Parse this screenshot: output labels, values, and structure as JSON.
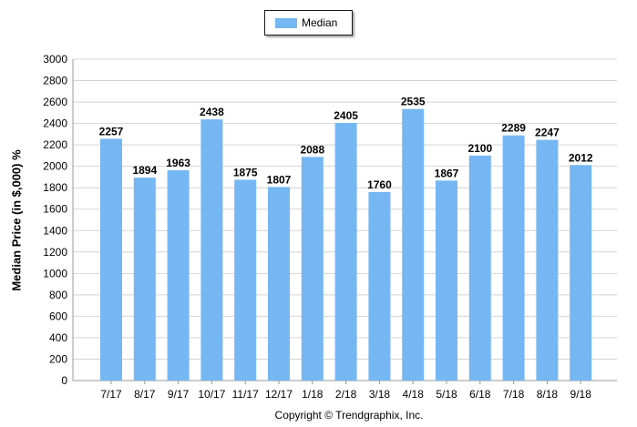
{
  "legend": {
    "label": "Median"
  },
  "footer": {
    "copyright": "Copyright © Trendgraphix, Inc."
  },
  "colors": {
    "bar": "#74b7f2",
    "grid": "#d4d4d4",
    "axis": "#999999"
  },
  "chart_data": {
    "type": "bar",
    "title": "",
    "xlabel": "",
    "ylabel": "Median Price (in $,000) %",
    "categories": [
      "7/17",
      "8/17",
      "9/17",
      "10/17",
      "11/17",
      "12/17",
      "1/18",
      "2/18",
      "3/18",
      "4/18",
      "5/18",
      "6/18",
      "7/18",
      "8/18",
      "9/18"
    ],
    "series": [
      {
        "name": "Median",
        "values": [
          2257,
          1894,
          1963,
          2438,
          1875,
          1807,
          2088,
          2405,
          1760,
          2535,
          1867,
          2100,
          2289,
          2247,
          2012
        ]
      }
    ],
    "ylim": [
      0,
      3000
    ],
    "yticks": [
      0,
      200,
      400,
      600,
      800,
      1000,
      1200,
      1400,
      1600,
      1800,
      2000,
      2200,
      2400,
      2600,
      2800,
      3000
    ],
    "grid": true,
    "legend_position": "top-center",
    "data_labels": true
  }
}
